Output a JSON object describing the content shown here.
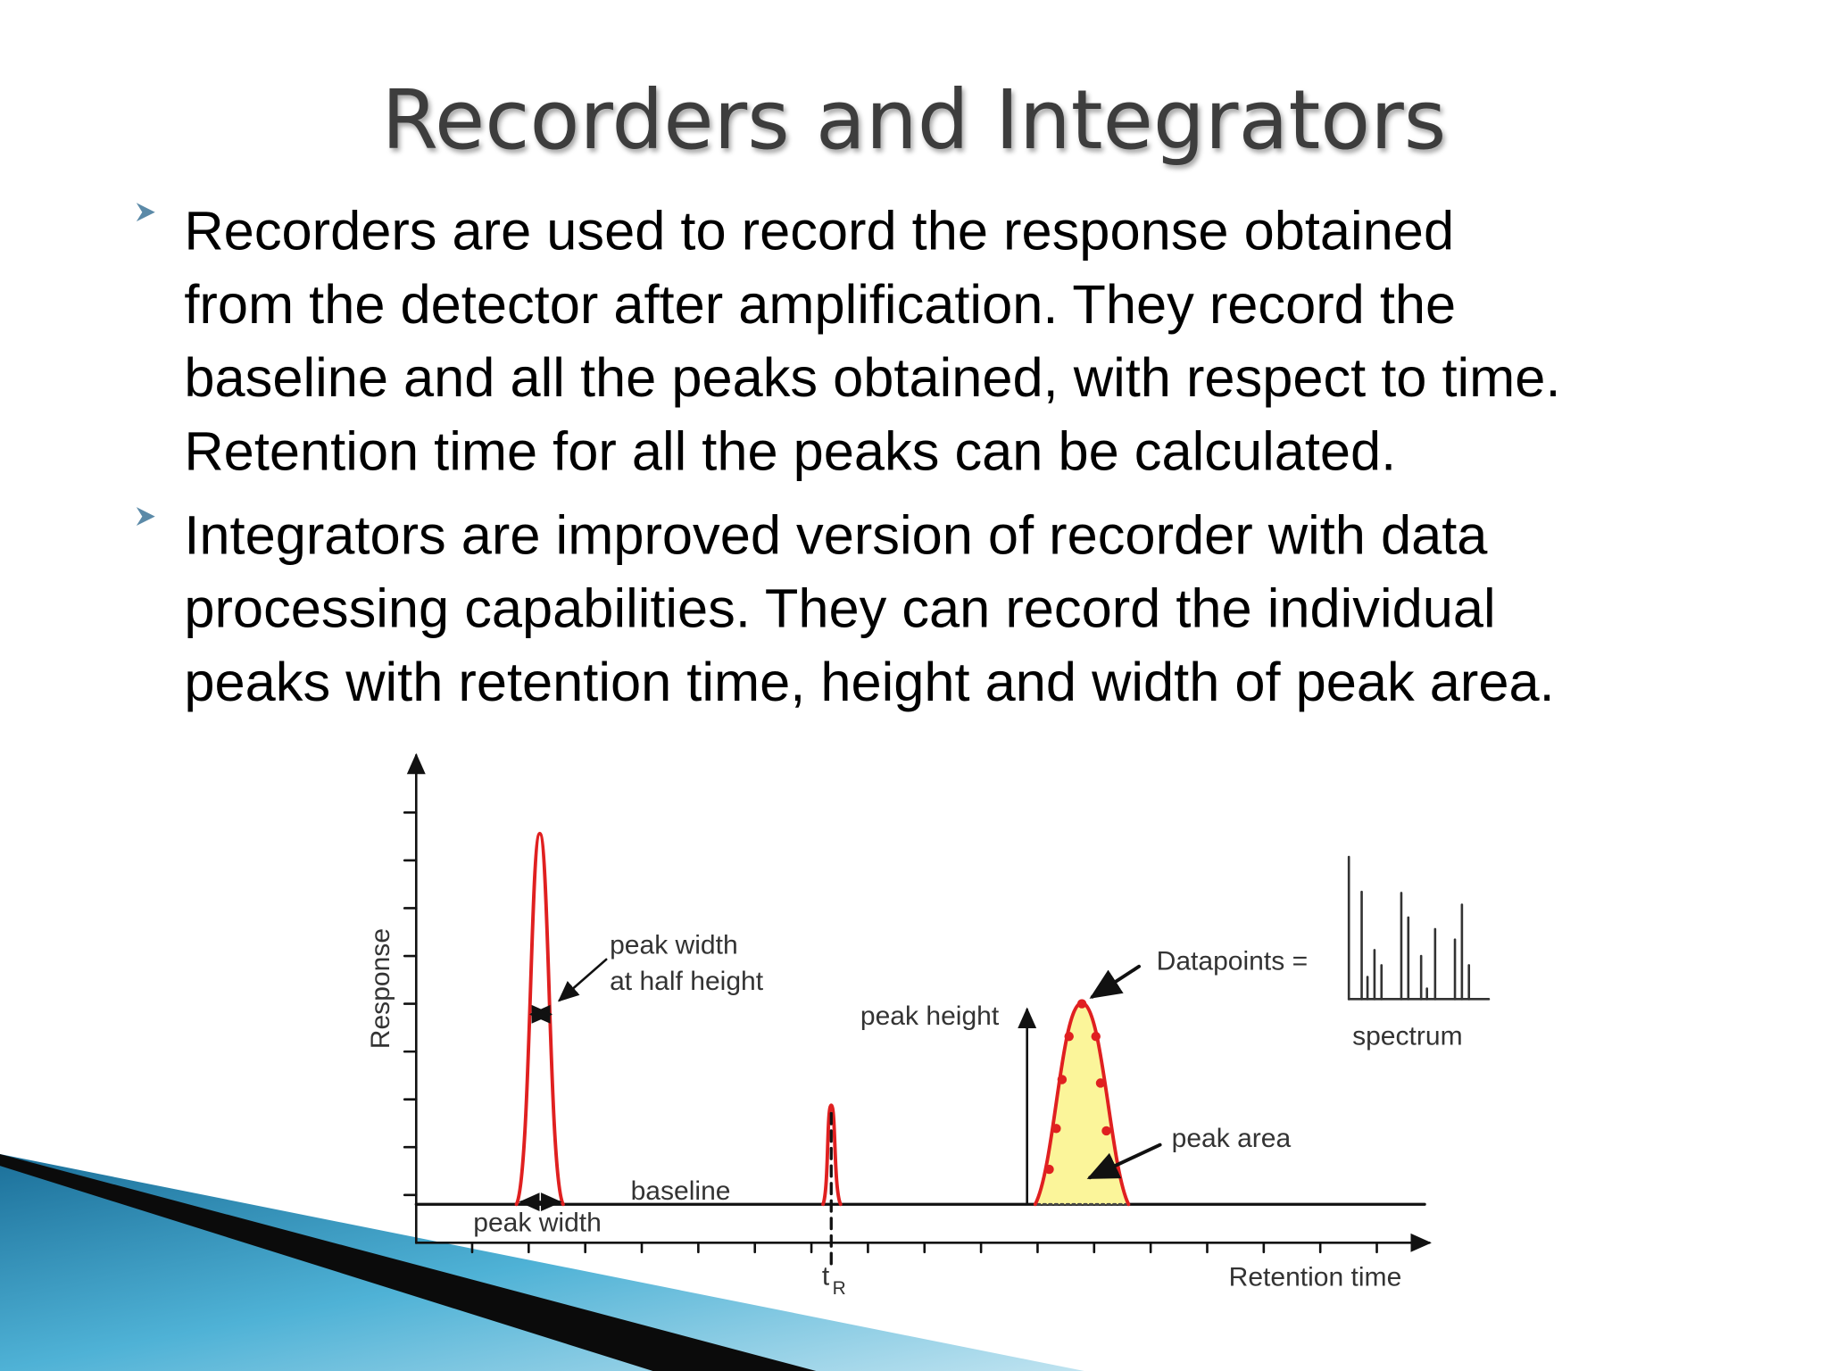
{
  "title": "Recorders and Integrators",
  "bullets": [
    {
      "lines": [
        "Recorders are used to record the response obtained",
        "from the detector after amplification. They record the",
        "baseline and all the peaks obtained, with respect to time.",
        "Retention time for all the peaks can be calculated."
      ]
    },
    {
      "lines": [
        "Integrators  are improved version of recorder with data",
        "processing capabilities. They can record the individual",
        "peaks with retention time, height and width of peak area."
      ]
    }
  ],
  "figure": {
    "y_axis_label": "Response",
    "x_axis_label": "Retention time",
    "half_height_label": [
      "peak width",
      "at half height"
    ],
    "peak_height_label": "peak height",
    "datapoints_label": "Datapoints =",
    "spectrum_label": "spectrum",
    "peak_area_label": "peak area",
    "baseline_label": "baseline",
    "peak_width_label": "peak width",
    "retention_marker": {
      "main": "t",
      "sub": "R"
    }
  }
}
